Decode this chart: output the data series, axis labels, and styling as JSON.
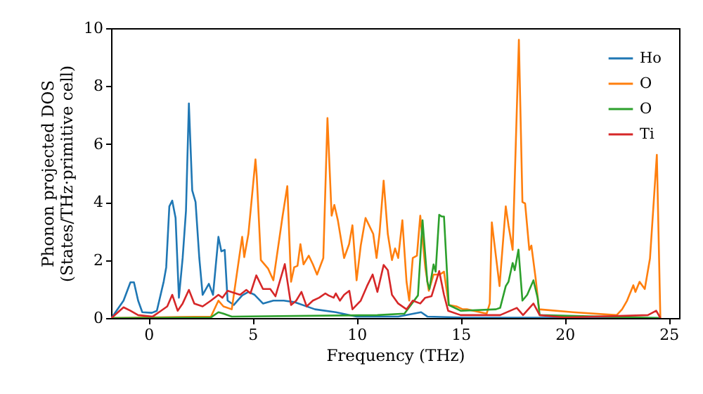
{
  "chart_data": {
    "type": "line",
    "xlabel": "Frequency (THz)",
    "ylabel": "Phonon projected DOS\n(States/THz·primitive cell)",
    "xlim": [
      -1.8,
      25.5
    ],
    "ylim": [
      0,
      10
    ],
    "xticks": [
      0,
      5,
      10,
      15,
      20,
      25
    ],
    "yticks": [
      0,
      2,
      4,
      6,
      8,
      10
    ],
    "grid": false,
    "legend": "top right",
    "series": [
      {
        "name": "Ho",
        "color": "#1f77b4",
        "x": [
          -1.78,
          -1.2,
          -0.87,
          -0.7,
          -0.5,
          -0.3,
          0.16,
          0.4,
          0.73,
          0.85,
          1.0,
          1.14,
          1.3,
          1.46,
          1.64,
          1.8,
          1.94,
          2.1,
          2.26,
          2.44,
          2.6,
          2.9,
          3.1,
          3.36,
          3.5,
          3.66,
          3.8,
          4.1,
          4.5,
          4.8,
          5.1,
          5.5,
          6.0,
          6.5,
          7.0,
          8.0,
          9.0,
          10.0,
          12.0,
          13.1,
          13.4,
          15.0,
          24.6
        ],
        "values": [
          0,
          0.6,
          1.23,
          1.23,
          0.6,
          0.2,
          0.18,
          0.25,
          1.26,
          1.75,
          3.85,
          4.05,
          3.45,
          0.7,
          2.07,
          3.7,
          7.4,
          4.4,
          4.0,
          2.07,
          0.8,
          1.18,
          0.8,
          2.8,
          2.3,
          2.35,
          0.6,
          0.45,
          0.78,
          0.9,
          0.8,
          0.5,
          0.6,
          0.6,
          0.55,
          0.3,
          0.2,
          0.05,
          0.05,
          0.2,
          0.05,
          0.02,
          0
        ]
      },
      {
        "name": "O",
        "color": "#ff7f0e",
        "x": [
          -1.78,
          3.0,
          3.36,
          3.6,
          4.0,
          4.5,
          4.6,
          4.8,
          5.14,
          5.2,
          5.4,
          5.75,
          6.0,
          6.44,
          6.67,
          6.85,
          7.0,
          7.16,
          7.3,
          7.45,
          7.7,
          7.9,
          8.1,
          8.4,
          8.6,
          8.8,
          8.93,
          9.1,
          9.4,
          9.64,
          9.8,
          10.0,
          10.2,
          10.43,
          10.8,
          10.96,
          11.1,
          11.3,
          11.5,
          11.7,
          11.85,
          12.0,
          12.2,
          12.4,
          12.53,
          12.7,
          12.9,
          13.06,
          13.3,
          13.47,
          13.7,
          14.0,
          14.2,
          14.43,
          14.8,
          15.1,
          15.3,
          16.25,
          16.4,
          16.5,
          16.87,
          17.17,
          17.3,
          17.5,
          17.8,
          17.97,
          18.1,
          18.3,
          18.4,
          18.6,
          18.77,
          20.4,
          22.5,
          22.76,
          23.0,
          23.3,
          23.4,
          23.6,
          23.85,
          24.1,
          24.43,
          24.6
        ],
        "values": [
          0,
          0.05,
          0.6,
          0.4,
          0.3,
          2.8,
          2.1,
          2.9,
          5.47,
          4.9,
          2.0,
          1.7,
          1.3,
          3.5,
          4.55,
          1.25,
          1.75,
          1.8,
          2.55,
          1.85,
          2.15,
          1.85,
          1.5,
          2.07,
          6.9,
          3.53,
          3.9,
          3.37,
          2.07,
          2.55,
          3.2,
          1.3,
          2.5,
          3.45,
          2.9,
          2.07,
          2.9,
          4.74,
          2.9,
          2.0,
          2.4,
          2.07,
          3.37,
          1.25,
          0.6,
          2.07,
          2.15,
          3.53,
          1.75,
          0.94,
          1.5,
          1.5,
          1.6,
          0.45,
          0.4,
          0.3,
          0.3,
          0.15,
          0.5,
          3.3,
          1.1,
          3.85,
          3.2,
          2.35,
          9.6,
          4.0,
          3.95,
          2.35,
          2.5,
          1.4,
          0.3,
          0.2,
          0.1,
          0.3,
          0.6,
          1.13,
          0.9,
          1.25,
          1.0,
          2.05,
          5.63,
          0
        ]
      },
      {
        "name": "O",
        "color": "#2ca02c",
        "x": [
          -1.78,
          3.0,
          3.36,
          3.6,
          4.0,
          11.0,
          12.3,
          12.95,
          13.17,
          13.4,
          13.5,
          13.7,
          13.8,
          13.97,
          14.1,
          14.2,
          14.43,
          15.0,
          16.7,
          16.9,
          17.17,
          17.3,
          17.5,
          17.6,
          17.78,
          17.97,
          18.2,
          18.5,
          18.7,
          18.8,
          24.6
        ],
        "values": [
          0,
          0.02,
          0.2,
          0.15,
          0.05,
          0.1,
          0.15,
          0.78,
          3.37,
          1.25,
          1.0,
          1.85,
          1.6,
          3.56,
          3.5,
          3.5,
          0.45,
          0.25,
          0.3,
          0.35,
          1.1,
          1.25,
          1.9,
          1.65,
          2.36,
          0.6,
          0.8,
          1.3,
          0.7,
          0.1,
          0
        ]
      },
      {
        "name": "Ti",
        "color": "#d62728",
        "x": [
          -1.78,
          -1.2,
          -0.87,
          -0.5,
          0.2,
          0.6,
          0.9,
          1.14,
          1.4,
          1.64,
          1.94,
          2.2,
          2.6,
          3.0,
          3.36,
          3.55,
          3.8,
          4.4,
          4.7,
          4.9,
          5.18,
          5.5,
          5.85,
          6.1,
          6.55,
          6.85,
          7.1,
          7.35,
          7.6,
          7.9,
          8.2,
          8.5,
          8.65,
          8.9,
          9.0,
          9.2,
          9.4,
          9.65,
          9.8,
          10.2,
          10.5,
          10.77,
          11.0,
          11.3,
          11.5,
          11.7,
          12.0,
          12.4,
          12.7,
          13.06,
          13.3,
          13.6,
          13.97,
          14.2,
          14.4,
          15.0,
          16.9,
          17.7,
          18.0,
          18.5,
          18.8,
          20.0,
          24.0,
          24.4,
          24.6
        ],
        "values": [
          0,
          0.37,
          0.25,
          0.1,
          0.05,
          0.25,
          0.4,
          0.8,
          0.25,
          0.5,
          0.97,
          0.5,
          0.4,
          0.6,
          0.8,
          0.7,
          0.94,
          0.8,
          0.97,
          0.85,
          1.47,
          1.0,
          1.0,
          0.75,
          1.86,
          0.45,
          0.6,
          0.9,
          0.4,
          0.6,
          0.7,
          0.85,
          0.78,
          0.7,
          0.85,
          0.6,
          0.8,
          0.94,
          0.3,
          0.6,
          1.1,
          1.5,
          0.9,
          1.83,
          1.65,
          0.8,
          0.5,
          0.3,
          0.6,
          0.5,
          0.7,
          0.75,
          1.62,
          0.8,
          0.25,
          0.1,
          0.1,
          0.35,
          0.1,
          0.5,
          0.1,
          0.02,
          0.1,
          0.25,
          0
        ]
      }
    ]
  }
}
